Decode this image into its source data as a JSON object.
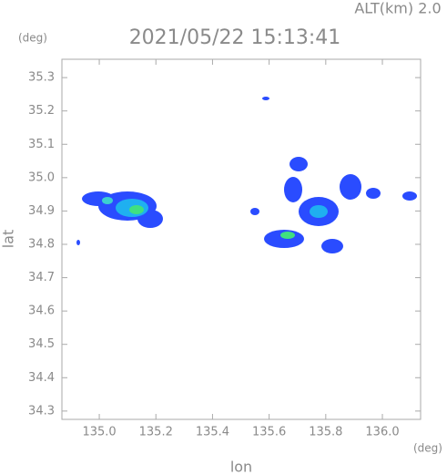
{
  "chart_data": {
    "type": "map",
    "altitude_label": "ALT(km) 2.0",
    "title": "2021/05/22 15:13:41",
    "ylabel": "lat",
    "xlabel": "lon",
    "yunit": "(deg)",
    "xunit": "(deg)",
    "xlim": [
      134.868,
      136.135
    ],
    "ylim": [
      34.275,
      35.355
    ],
    "xticks": [
      {
        "value": 135,
        "label": "135.0"
      },
      135.2,
      135.4,
      135.6,
      135.8,
      {
        "value": 136,
        "label": "136.0"
      }
    ],
    "yticks": [
      34.3,
      34.4,
      34.5,
      34.6,
      34.7,
      34.8,
      34.9,
      {
        "value": 35,
        "label": "35.0"
      },
      35.1,
      35.2,
      35.3
    ]
  }
}
